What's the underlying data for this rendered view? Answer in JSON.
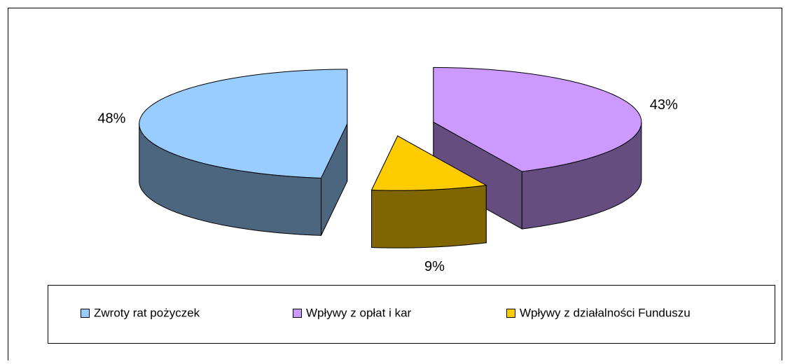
{
  "chart_data": {
    "type": "pie3d",
    "categories": [
      "Zwroty rat pożyczek",
      "Wpływy z opłat i kar",
      "Wpływy z działalności Funduszu"
    ],
    "values": [
      48,
      43,
      9
    ],
    "value_labels": [
      "48%",
      "43%",
      "9%"
    ],
    "colors": [
      "#99ccff",
      "#cc99ff",
      "#ffcc00"
    ],
    "side_colors": [
      "#4d6680",
      "#664d80",
      "#806600"
    ],
    "legend": "bottom"
  }
}
